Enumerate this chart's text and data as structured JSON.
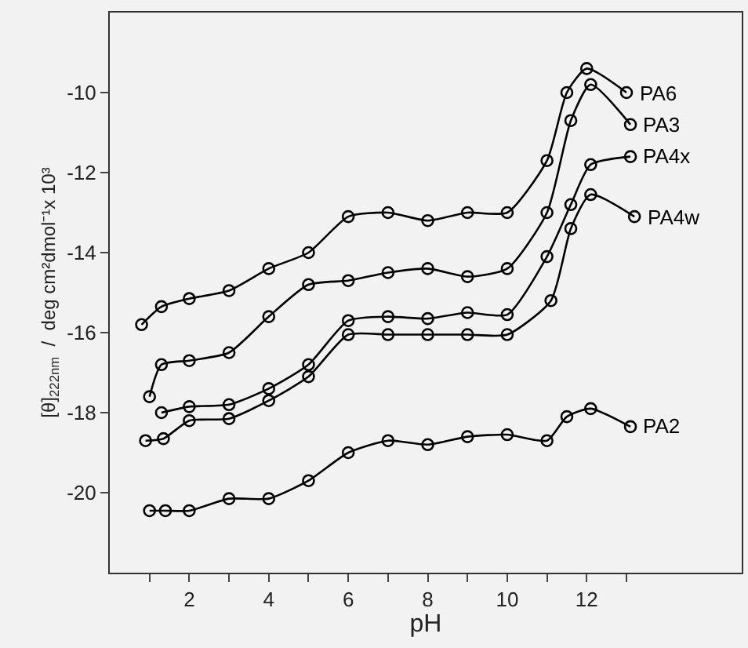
{
  "chart_data": {
    "type": "line",
    "xlabel": "pH",
    "ylabel": "[θ]$_{222nm}$  /  deg cm²dmol⁻¹x 10³",
    "xlim": [
      0,
      15.9
    ],
    "ylim": [
      -22,
      -8
    ],
    "xticks": [
      {
        "value": 1,
        "label": null
      },
      2,
      {
        "value": 3,
        "label": null
      },
      4,
      {
        "value": 5,
        "label": null
      },
      6,
      {
        "value": 7,
        "label": null
      },
      8,
      {
        "value": 9,
        "label": null
      },
      10,
      {
        "value": 11,
        "label": null
      },
      12,
      {
        "value": 13,
        "label": null
      }
    ],
    "yticks": [
      -10,
      -12,
      -14,
      -16,
      -18,
      -20
    ],
    "grid": false,
    "legend": false,
    "marker": "circle",
    "line_style": "solid",
    "series": [
      {
        "name": "PA6",
        "color": "#000000",
        "x": [
          0.8,
          1.3,
          2,
          3,
          4,
          5,
          6,
          7,
          8,
          9,
          10,
          11,
          11.5,
          12,
          13
        ],
        "values": [
          -15.8,
          -15.35,
          -15.15,
          -14.95,
          -14.4,
          -14.0,
          -13.1,
          -13.0,
          -13.2,
          -13.0,
          -13.0,
          -11.7,
          -10.0,
          -9.4,
          -10.0
        ]
      },
      {
        "name": "PA3",
        "color": "#000000",
        "x": [
          1,
          1.3,
          2,
          3,
          4,
          5,
          6,
          7,
          8,
          9,
          10,
          11,
          11.6,
          12.1,
          13.1
        ],
        "values": [
          -17.6,
          -16.8,
          -16.7,
          -16.5,
          -15.6,
          -14.8,
          -14.7,
          -14.5,
          -14.4,
          -14.6,
          -14.4,
          -13.0,
          -10.7,
          -9.8,
          -10.8
        ]
      },
      {
        "name": "PA4x",
        "color": "#000000",
        "x": [
          1.3,
          2,
          3,
          4,
          5,
          6,
          7,
          8,
          9,
          10,
          11,
          11.6,
          12.1,
          13.1
        ],
        "values": [
          -18.0,
          -17.85,
          -17.8,
          -17.4,
          -16.8,
          -15.7,
          -15.6,
          -15.65,
          -15.5,
          -15.55,
          -14.1,
          -12.8,
          -11.8,
          -11.6
        ]
      },
      {
        "name": "PA4w",
        "color": "#000000",
        "x": [
          0.9,
          1.35,
          2,
          3,
          4,
          5,
          6,
          7,
          8,
          9,
          10,
          11.1,
          11.6,
          12.1,
          13.2
        ],
        "values": [
          -18.7,
          -18.65,
          -18.2,
          -18.15,
          -17.7,
          -17.1,
          -16.05,
          -16.05,
          -16.05,
          -16.05,
          -16.05,
          -15.2,
          -13.4,
          -12.55,
          -13.1
        ]
      },
      {
        "name": "PA2",
        "color": "#000000",
        "x": [
          1,
          1.4,
          2,
          3,
          4,
          5,
          6,
          7,
          8,
          9,
          10,
          11,
          11.5,
          12.1,
          13.1
        ],
        "values": [
          -20.45,
          -20.45,
          -20.45,
          -20.15,
          -20.15,
          -19.7,
          -19.0,
          -18.7,
          -18.8,
          -18.6,
          -18.55,
          -18.7,
          -18.1,
          -17.9,
          -18.35
        ]
      }
    ]
  }
}
